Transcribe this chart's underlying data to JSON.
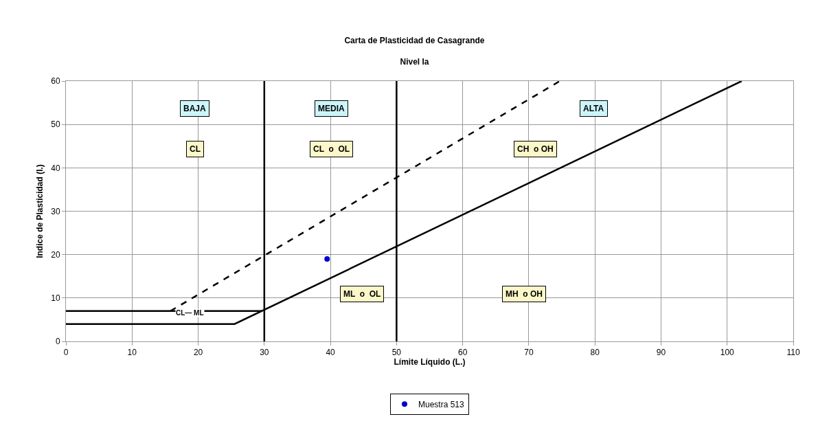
{
  "chart_data": {
    "type": "line",
    "title": "Carta de Plasticidad de Casagrande",
    "subtitle": "Nivel Ia",
    "xlabel": "Límite Líquido (L.)",
    "ylabel": "Indice de Plasticidad (I.)",
    "xlim": [
      0,
      110
    ],
    "xticks": [
      0,
      10,
      20,
      30,
      40,
      50,
      60,
      70,
      80,
      90,
      100,
      110
    ],
    "ylim": [
      0,
      60
    ],
    "yticks": [
      0,
      10,
      20,
      30,
      40,
      50,
      60
    ],
    "grid": true,
    "legend": "bottom",
    "marker": "none",
    "series": [
      {
        "color": "#000000",
        "line_style": "solid",
        "x": [
          0,
          25.5,
          102.2
        ],
        "values": [
          4,
          4,
          60
        ]
      },
      {
        "color": "#000000",
        "line_style": "solid",
        "x": [
          0,
          29.6
        ],
        "values": [
          7,
          7
        ]
      },
      {
        "color": "#000000",
        "line_style": "dashed",
        "x": [
          15.8,
          74.7
        ],
        "values": [
          7,
          60
        ]
      },
      {
        "color": "#000000",
        "line_style": "solid",
        "x": [
          30,
          30
        ],
        "values": [
          0,
          60
        ]
      },
      {
        "color": "#000000",
        "line_style": "solid",
        "x": [
          50,
          50
        ],
        "values": [
          0,
          60
        ]
      },
      {
        "type": "scatter",
        "name": "Muestra 513",
        "color": "#0000cc",
        "marker": "circle",
        "x": [
          39.5
        ],
        "values": [
          19
        ]
      }
    ],
    "annotations": [
      "BAJA",
      "MEDIA",
      "ALTA",
      "CL",
      "CL  o  OL",
      "CH  o OH",
      "ML  o  OL",
      "MH  o OH",
      "CL— ML"
    ]
  }
}
